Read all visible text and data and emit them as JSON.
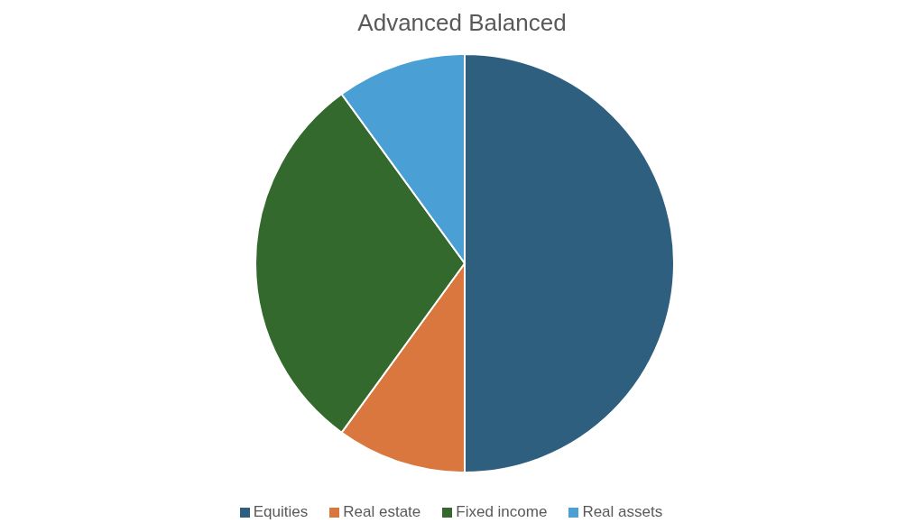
{
  "chart_data": {
    "type": "pie",
    "title": "Advanced Balanced",
    "categories": [
      "Equities",
      "Real estate",
      "Fixed income",
      "Real assets"
    ],
    "values": [
      50,
      10,
      30,
      10
    ],
    "colors": [
      "#2e5f7f",
      "#d9773f",
      "#33692d",
      "#4a9fd4"
    ],
    "legend": "bottom"
  }
}
